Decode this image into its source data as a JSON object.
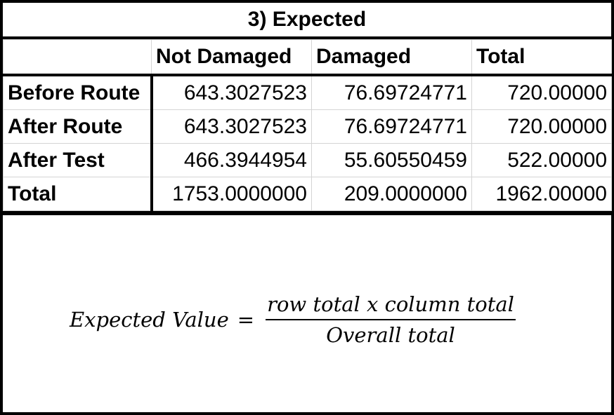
{
  "title": "3) Expected",
  "table": {
    "headers": [
      "",
      "Not Damaged",
      "Damaged",
      "Total"
    ],
    "rows": [
      {
        "label": "Before Route",
        "not_damaged": "643.3027523",
        "damaged": "76.69724771",
        "total": "720.00000"
      },
      {
        "label": "After Route",
        "not_damaged": "643.3027523",
        "damaged": "76.69724771",
        "total": "720.00000"
      },
      {
        "label": "After Test",
        "not_damaged": "466.3944954",
        "damaged": "55.60550459",
        "total": "522.00000"
      },
      {
        "label": "Total",
        "not_damaged": "1753.0000000",
        "damaged": "209.0000000",
        "total": "1962.00000"
      }
    ]
  },
  "formula": {
    "lhs": "Expected Value",
    "equals": "=",
    "numerator": "row total x column total",
    "denominator": "Overall total"
  },
  "colors": {
    "border": "#000000",
    "background": "#ffffff",
    "gridline": "#d4d4d4"
  }
}
